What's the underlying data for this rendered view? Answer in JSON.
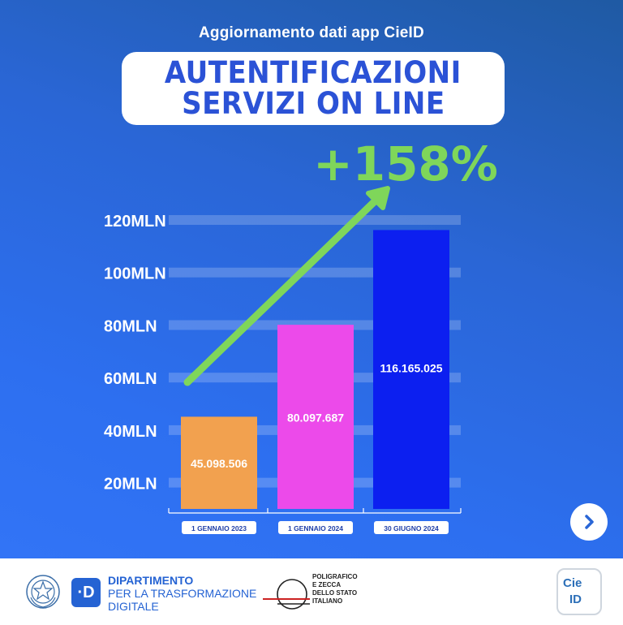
{
  "header": {
    "subtitle": "Aggiornamento dati app CieID",
    "title_line1": "AUTENTIFICAZIONI",
    "title_line2": "SERVIZI ON LINE"
  },
  "chart_data": {
    "type": "bar",
    "categories": [
      "1 GENNAIO 2023",
      "1 GENNAIO 2024",
      "30 GIUGNO 2024"
    ],
    "values": [
      45098506,
      80097687,
      116165025
    ],
    "value_labels": [
      "45.098.506",
      "80.097.687",
      "116.165.025"
    ],
    "bar_colors": [
      "#f2a14f",
      "#ec4aea",
      "#0c1ff0"
    ],
    "y_ticks": [
      20000000,
      40000000,
      60000000,
      80000000,
      100000000,
      120000000
    ],
    "y_tick_labels": [
      "20MLN",
      "40MLN",
      "60MLN",
      "80MLN",
      "100MLN",
      "120MLN"
    ],
    "ylim": [
      10000000,
      120000000
    ],
    "annotation": "+158%",
    "annotation_color": "#7fd65a",
    "grid": true
  },
  "footer": {
    "dtd_mark": "·D",
    "dtd_line1": "DIPARTIMENTO",
    "dtd_line2": "PER LA TRASFORMAZIONE",
    "dtd_line3": "DIGITALE",
    "ipzs_line1": "POLIGRAFICO",
    "ipzs_line2": "E ZECCA",
    "ipzs_line3": "DELLO STATO",
    "ipzs_line4": "ITALIANO",
    "cie_top": "Cie",
    "cie_bottom": "ID"
  },
  "icons": {
    "next": "chevron-right-icon",
    "emblem": "italian-republic-emblem-icon"
  }
}
